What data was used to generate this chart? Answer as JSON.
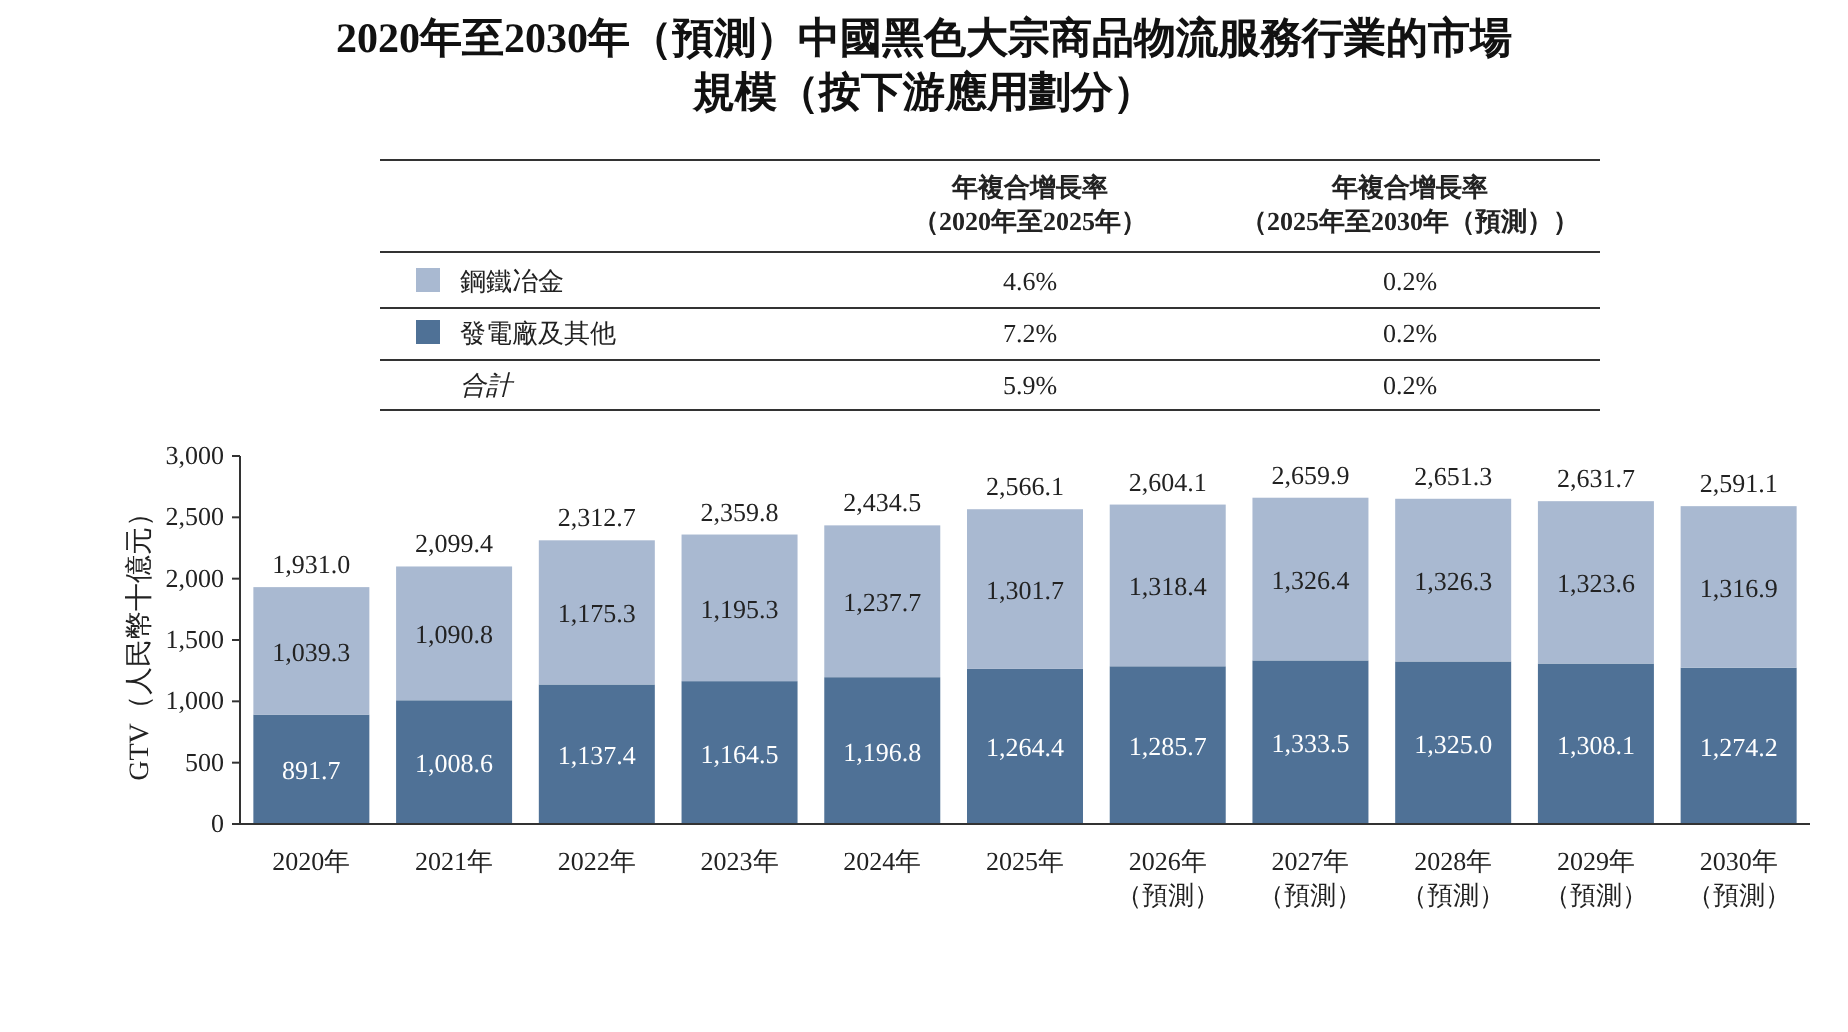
{
  "chart_data": {
    "type": "bar",
    "title": "2020年至2030年（預測）中國黑色大宗商品物流服務行業的市場規模（按下游應用劃分）",
    "ylabel": "GTV（人民幣十億元）",
    "stacked": true,
    "legend": "top",
    "categories": [
      "2020年",
      "2021年",
      "2022年",
      "2023年",
      "2024年",
      "2025年",
      "2026年（預測）",
      "2027年（預測）",
      "2028年（預測）",
      "2029年（預測）",
      "2030年（預測）"
    ],
    "ylim": [
      0,
      3000
    ],
    "yticks": [
      0,
      500,
      {
        "value": 1000,
        "label": "1,000"
      },
      {
        "value": 1500,
        "label": "1,500"
      },
      {
        "value": 2000,
        "label": "2,000"
      },
      {
        "value": 2500,
        "label": "2,500"
      },
      {
        "value": 3000,
        "label": "3,000"
      }
    ],
    "series": [
      {
        "name": "發電廠及其他",
        "color": "#4f7196",
        "values": [
          891.7,
          1008.6,
          1137.4,
          1164.5,
          1196.8,
          1264.4,
          1285.7,
          1333.5,
          1325.0,
          1308.1,
          1274.2
        ],
        "value_labels": [
          "891.7",
          "1,008.6",
          "1,137.4",
          "1,164.5",
          "1,196.8",
          "1,264.4",
          "1,285.7",
          "1,333.5",
          "1,325.0",
          "1,308.1",
          "1,274.2"
        ]
      },
      {
        "name": "鋼鐵冶金",
        "color": "#a9b9d1",
        "values": [
          1039.3,
          1090.8,
          1175.3,
          1195.3,
          1237.7,
          1301.7,
          1318.4,
          1326.4,
          1326.3,
          1323.6,
          1316.9
        ],
        "value_labels": [
          "1,039.3",
          "1,090.8",
          "1,175.3",
          "1,195.3",
          "1,237.7",
          "1,301.7",
          "1,318.4",
          "1,326.4",
          "1,326.3",
          "1,323.6",
          "1,316.9"
        ]
      }
    ],
    "totals": [
      "1,931.0",
      "2,099.4",
      "2,312.7",
      "2,359.8",
      "2,434.5",
      "2,566.1",
      "2,604.1",
      "2,659.9",
      "2,651.3",
      "2,631.7",
      "2,591.1"
    ],
    "annotations": [
      "年複合增長率（2020年至2025年）",
      "年複合增長率（2025年至2030年（預測））",
      "4.6%",
      "0.2%",
      "7.2%",
      "0.2%",
      "合計",
      "5.9%",
      "0.2%"
    ]
  }
}
